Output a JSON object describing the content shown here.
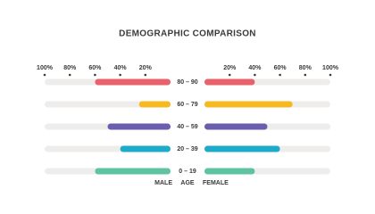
{
  "chart_data": {
    "type": "butterfly",
    "title": "DEMOGRAPHIC COMPARISON",
    "categories": [
      "80 – 90",
      "60 – 79",
      "40 – 59",
      "20 – 39",
      "0 – 19"
    ],
    "category_label": "AGE",
    "colors": [
      "#e8616b",
      "#f6b922",
      "#6a5fae",
      "#1dabc9",
      "#5ec39f"
    ],
    "track_color": "#efecec",
    "series": [
      {
        "name": "MALE",
        "side": "left",
        "values": [
          60,
          25,
          50,
          40,
          60
        ]
      },
      {
        "name": "FEMALE",
        "side": "right",
        "values": [
          40,
          70,
          50,
          60,
          40
        ]
      }
    ],
    "xlim": [
      0,
      100
    ],
    "xticks": [
      {
        "value": 20,
        "label": "20%"
      },
      {
        "value": 40,
        "label": "40%"
      },
      {
        "value": 60,
        "label": "60%"
      },
      {
        "value": 80,
        "label": "80%"
      },
      {
        "value": 100,
        "label": "100%"
      }
    ]
  }
}
